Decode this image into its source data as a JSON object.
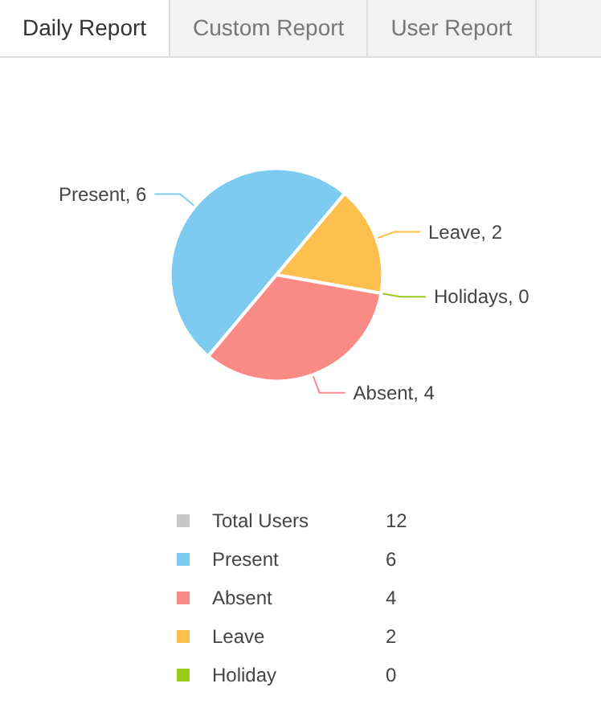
{
  "chart_data": [
    {
      "type": "pie",
      "annotations": [
        "Daily Report",
        "Custom Report",
        "User Report"
      ],
      "categories": [
        "Present",
        "Leave",
        "Holidays",
        "Absent"
      ],
      "values": [
        6,
        2,
        0,
        4
      ],
      "value_labels": [
        ", 6",
        ", 2",
        ", 0",
        ", 4"
      ],
      "colors": [
        "#7ecbf1",
        "#fdbf4d",
        "#9aca1a",
        "#fa8a86"
      ]
    },
    {
      "type": "other",
      "categories": [
        "Total Users",
        "Present",
        "Absent",
        "Leave",
        "Holiday"
      ],
      "values": [
        12,
        6,
        4,
        2,
        0
      ],
      "data_labels": true,
      "colors": [
        "#c8c8c8",
        "#7ecbf1",
        "#fa8a86",
        "#fdbf4d",
        "#9aca1a"
      ]
    }
  ]
}
